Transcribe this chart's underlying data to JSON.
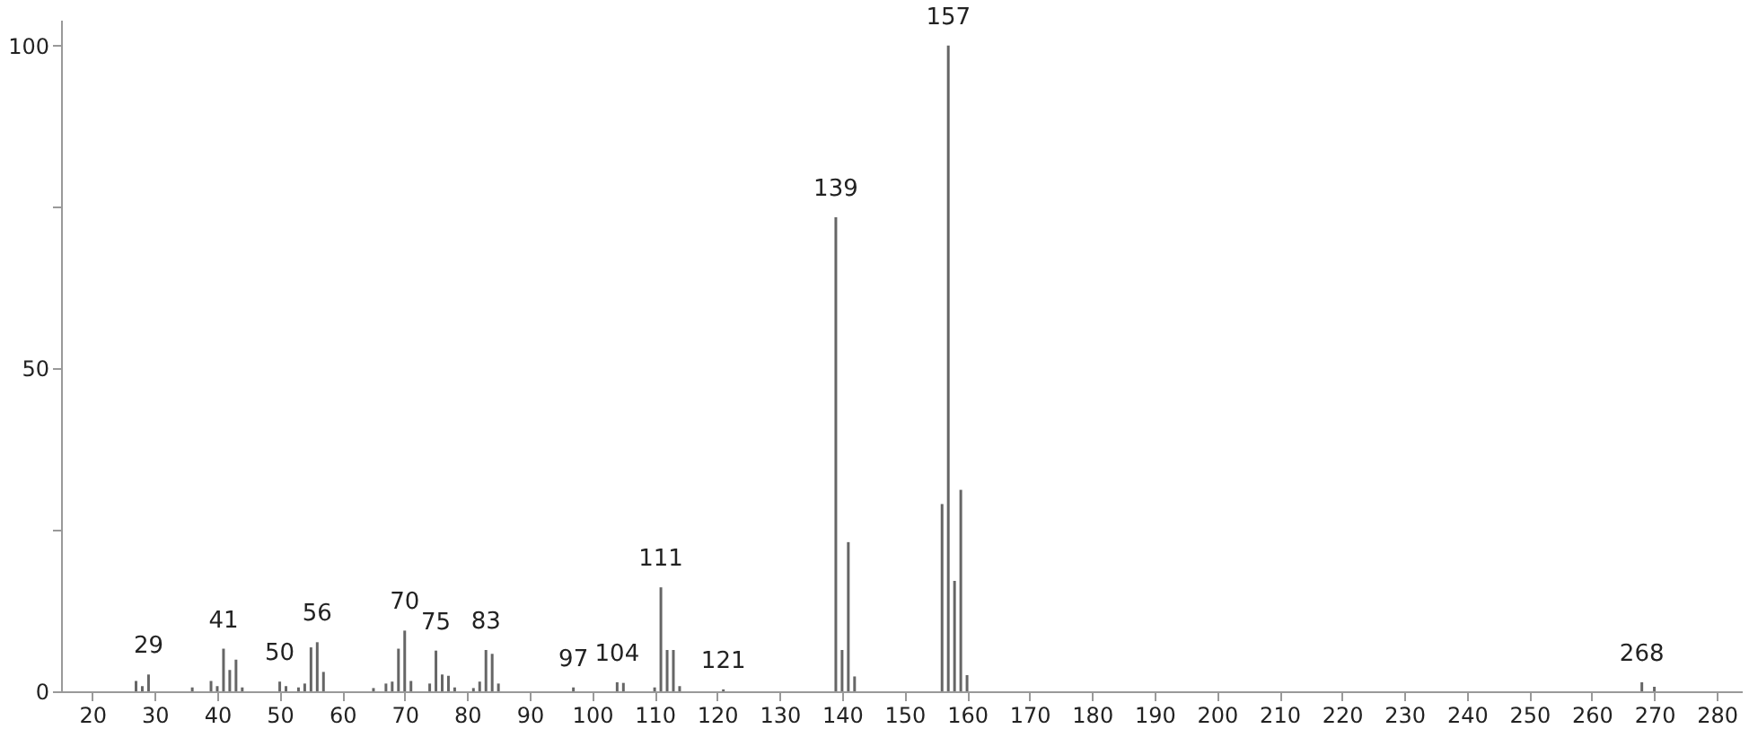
{
  "chart_data": {
    "type": "bar",
    "color": "#666666",
    "x": [
      27,
      28,
      29,
      36,
      39,
      40,
      41,
      42,
      43,
      44,
      50,
      51,
      53,
      54,
      55,
      56,
      57,
      65,
      67,
      68,
      69,
      70,
      71,
      74,
      75,
      76,
      77,
      78,
      81,
      82,
      83,
      84,
      85,
      97,
      104,
      105,
      110,
      111,
      112,
      113,
      114,
      121,
      139,
      140,
      141,
      142,
      156,
      157,
      158,
      159,
      160,
      268,
      270
    ],
    "values": [
      1.6,
      0.8,
      2.6,
      0.6,
      1.6,
      0.8,
      6.6,
      3.3,
      4.9,
      0.6,
      1.5,
      0.8,
      0.6,
      1.2,
      6.8,
      7.6,
      3.0,
      0.5,
      1.2,
      1.5,
      6.6,
      9.4,
      1.6,
      1.2,
      6.3,
      2.6,
      2.4,
      0.6,
      0.5,
      1.5,
      6.4,
      5.8,
      1.2,
      0.6,
      1.4,
      1.3,
      0.6,
      16.1,
      6.4,
      6.4,
      0.8,
      0.3,
      73.4,
      6.4,
      23.1,
      2.3,
      29.0,
      100,
      17.1,
      31.2,
      2.5,
      1.4,
      0.7
    ],
    "annotations": [
      {
        "text": "29",
        "x": 29,
        "y": 2.6
      },
      {
        "text": "41",
        "x": 41,
        "y": 6.6
      },
      {
        "text": "50",
        "x": 50,
        "y": 1.5
      },
      {
        "text": "56",
        "x": 56,
        "y": 7.6
      },
      {
        "text": "70",
        "x": 70,
        "y": 9.4
      },
      {
        "text": "75",
        "x": 75,
        "y": 6.3
      },
      {
        "text": "83",
        "x": 83,
        "y": 6.4
      },
      {
        "text": "97",
        "x": 97,
        "y": 0.6
      },
      {
        "text": "104",
        "x": 104,
        "y": 1.4
      },
      {
        "text": "111",
        "x": 111,
        "y": 16.1
      },
      {
        "text": "121",
        "x": 121,
        "y": 0.3
      },
      {
        "text": "139",
        "x": 139,
        "y": 73.4
      },
      {
        "text": "157",
        "x": 157,
        "y": 100
      },
      {
        "text": "268",
        "x": 268,
        "y": 1.4
      }
    ],
    "xlim": [
      15,
      284
    ],
    "ylim": [
      0,
      104
    ],
    "xticks": [
      20,
      30,
      40,
      50,
      60,
      70,
      80,
      90,
      100,
      110,
      120,
      130,
      140,
      150,
      160,
      170,
      180,
      190,
      200,
      210,
      220,
      230,
      240,
      250,
      260,
      270,
      280
    ],
    "yticks": [
      0,
      {
        "value": 25,
        "label": null
      },
      50,
      {
        "value": 75,
        "label": null
      },
      100
    ],
    "grid": false
  }
}
